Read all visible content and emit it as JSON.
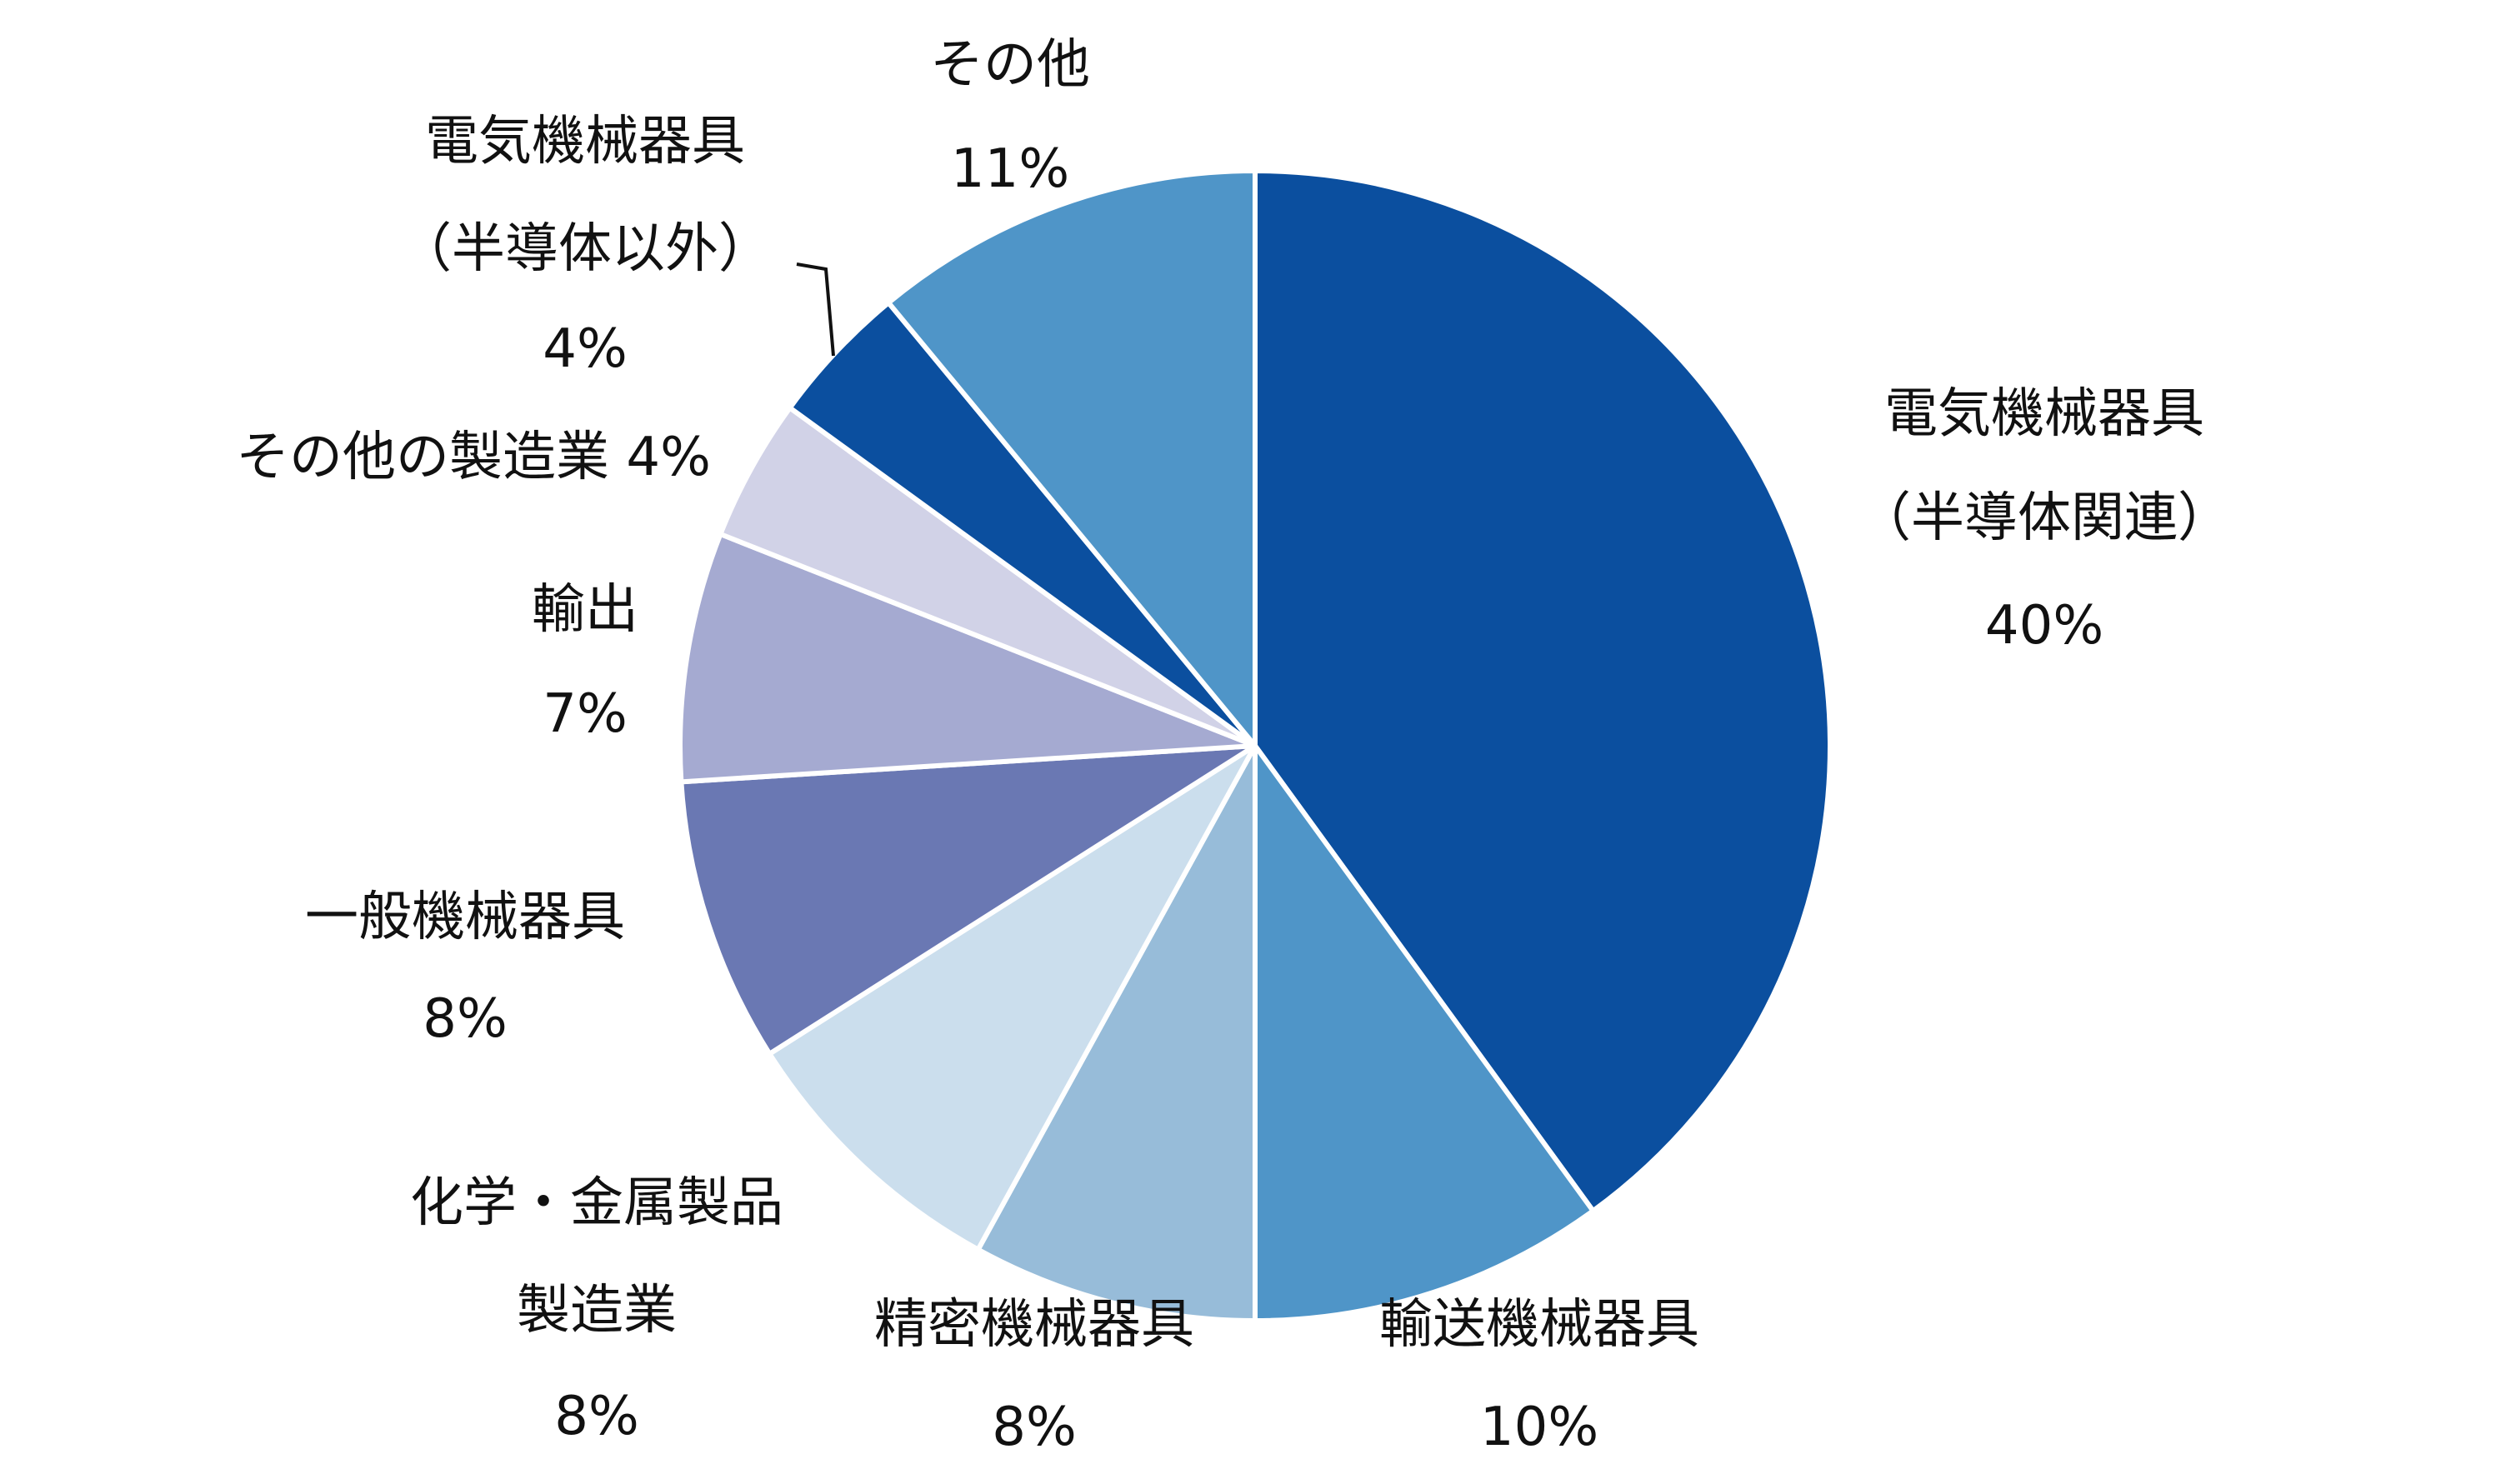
{
  "chart_data": {
    "type": "pie",
    "start": "top",
    "direction": "clockwise",
    "slices": [
      {
        "label": [
          "電気機械器具",
          "（半導体関連）"
        ],
        "value": 40,
        "value_label": "40%",
        "color": "#0b4f9f"
      },
      {
        "label": [
          "輸送機械器具"
        ],
        "value": 10,
        "value_label": "10%",
        "color": "#4f95c8"
      },
      {
        "label": [
          "精密機械器具"
        ],
        "value": 8,
        "value_label": "8%",
        "color": "#97bcd9"
      },
      {
        "label": [
          "化学・金属製品",
          "製造業"
        ],
        "value": 8,
        "value_label": "8%",
        "color": "#cbdeed"
      },
      {
        "label": [
          "一般機械器具"
        ],
        "value": 8,
        "value_label": "8%",
        "color": "#6a78b3"
      },
      {
        "label": [
          "輸出"
        ],
        "value": 7,
        "value_label": "7%",
        "color": "#a5aad1"
      },
      {
        "label": [
          "その他の製造業"
        ],
        "value": 4,
        "value_label": "4%",
        "color": "#d1d2e7"
      },
      {
        "label": [
          "電気機械器具",
          "（半導体以外）"
        ],
        "value": 4,
        "value_label": "4%",
        "color": "#0b4f9f"
      },
      {
        "label": [
          "その他"
        ],
        "value": 11,
        "value_label": "11%",
        "color": "#4f95c8"
      }
    ]
  }
}
